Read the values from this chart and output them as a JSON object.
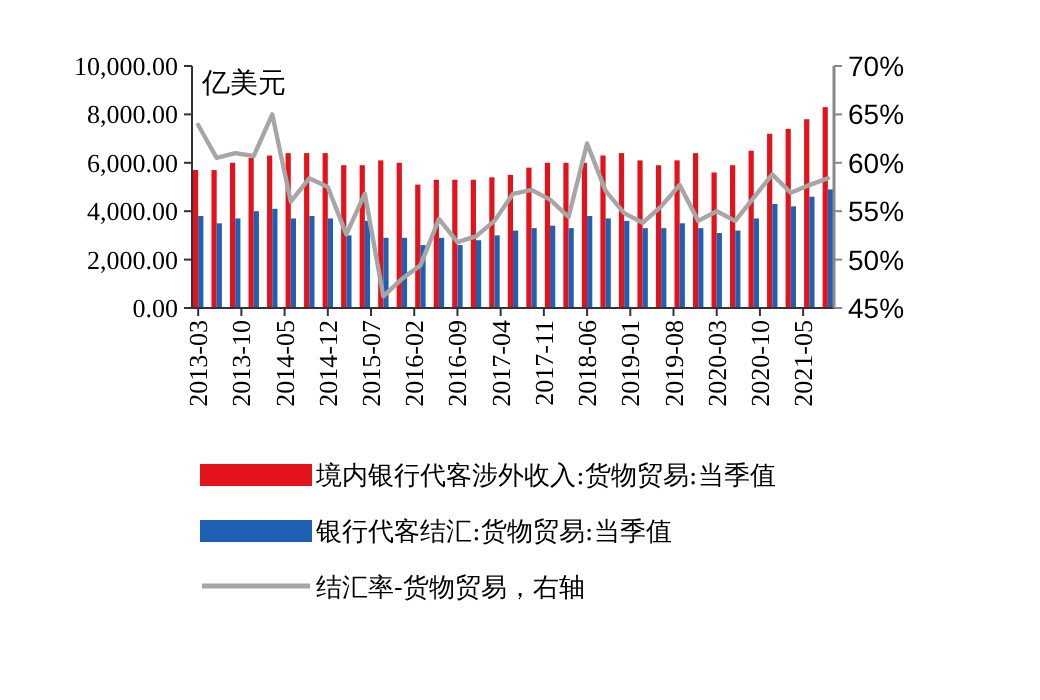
{
  "chart_data": {
    "type": "bar",
    "ylabel": "亿美元",
    "x": [
      "2013-03",
      "2013-06",
      "2013-09",
      "2013-12",
      "2014-03",
      "2014-06",
      "2014-09",
      "2014-12",
      "2015-03",
      "2015-06",
      "2015-09",
      "2015-12",
      "2016-03",
      "2016-06",
      "2016-09",
      "2016-12",
      "2017-03",
      "2017-06",
      "2017-09",
      "2017-12",
      "2018-03",
      "2018-06",
      "2018-09",
      "2018-12",
      "2019-03",
      "2019-06",
      "2019-09",
      "2019-12",
      "2020-03",
      "2020-06",
      "2020-09",
      "2020-12",
      "2021-03",
      "2021-06",
      "2021-09"
    ],
    "series": [
      {
        "name": "境内银行代客涉外收入:货物贸易:当季值",
        "color": "#e3121b",
        "values": [
          5700,
          5700,
          6000,
          6200,
          6300,
          6400,
          6400,
          6400,
          5900,
          5900,
          6100,
          6000,
          5100,
          5300,
          5300,
          5300,
          5400,
          5500,
          5800,
          6000,
          6000,
          6000,
          6300,
          6400,
          6100,
          5900,
          6100,
          6400,
          5600,
          5900,
          6500,
          7200,
          7400,
          7800,
          8300
        ]
      },
      {
        "name": "银行代客结汇:货物贸易:当季值",
        "color": "#1f5fb4",
        "values": [
          3800,
          3500,
          3700,
          4000,
          4100,
          3700,
          3800,
          3700,
          3000,
          3600,
          2900,
          2900,
          2600,
          2900,
          2600,
          2800,
          3000,
          3200,
          3300,
          3400,
          3300,
          3800,
          3700,
          3600,
          3300,
          3300,
          3500,
          3300,
          3100,
          3200,
          3700,
          4300,
          4200,
          4600,
          4900
        ]
      },
      {
        "name": "结汇率-货物贸易，右轴",
        "color": "#a6a6a6",
        "type": "line",
        "axis": "y2",
        "values": [
          63.9,
          60.5,
          61.0,
          60.7,
          65.0,
          56.0,
          58.4,
          57.5,
          52.6,
          56.8,
          46.2,
          48.0,
          49.4,
          54.2,
          51.8,
          52.4,
          54.0,
          56.8,
          57.2,
          56.2,
          54.4,
          62.0,
          57.1,
          54.8,
          53.8,
          55.5,
          57.7,
          54.0,
          55.0,
          54.0,
          56.4,
          58.8,
          56.9,
          57.7,
          58.4
        ]
      }
    ],
    "ylim": [
      0,
      10000
    ],
    "yticks": [
      {
        "value": 0,
        "label": "0.00"
      },
      {
        "value": 2000,
        "label": "2,000.00"
      },
      {
        "value": 4000,
        "label": "4,000.00"
      },
      {
        "value": 6000,
        "label": "6,000.00"
      },
      {
        "value": 8000,
        "label": "8,000.00"
      },
      {
        "value": 10000,
        "label": "10,000.00"
      }
    ],
    "y2lim": [
      45,
      70
    ],
    "y2ticks": [
      {
        "value": 45,
        "label": "45%"
      },
      {
        "value": 50,
        "label": "50%"
      },
      {
        "value": 55,
        "label": "55%"
      },
      {
        "value": 60,
        "label": "60%"
      },
      {
        "value": 65,
        "label": "65%"
      },
      {
        "value": 70,
        "label": "70%"
      }
    ],
    "xticks": [
      "2013-03",
      "2013-10",
      "2014-05",
      "2014-12",
      "2015-07",
      "2016-02",
      "2016-09",
      "2017-04",
      "2017-11",
      "2018-06",
      "2019-01",
      "2019-08",
      "2020-03",
      "2020-10",
      "2021-05"
    ],
    "xlim": [
      "2013-02",
      "2021-10"
    ],
    "legend": "bottom",
    "grid": false
  }
}
